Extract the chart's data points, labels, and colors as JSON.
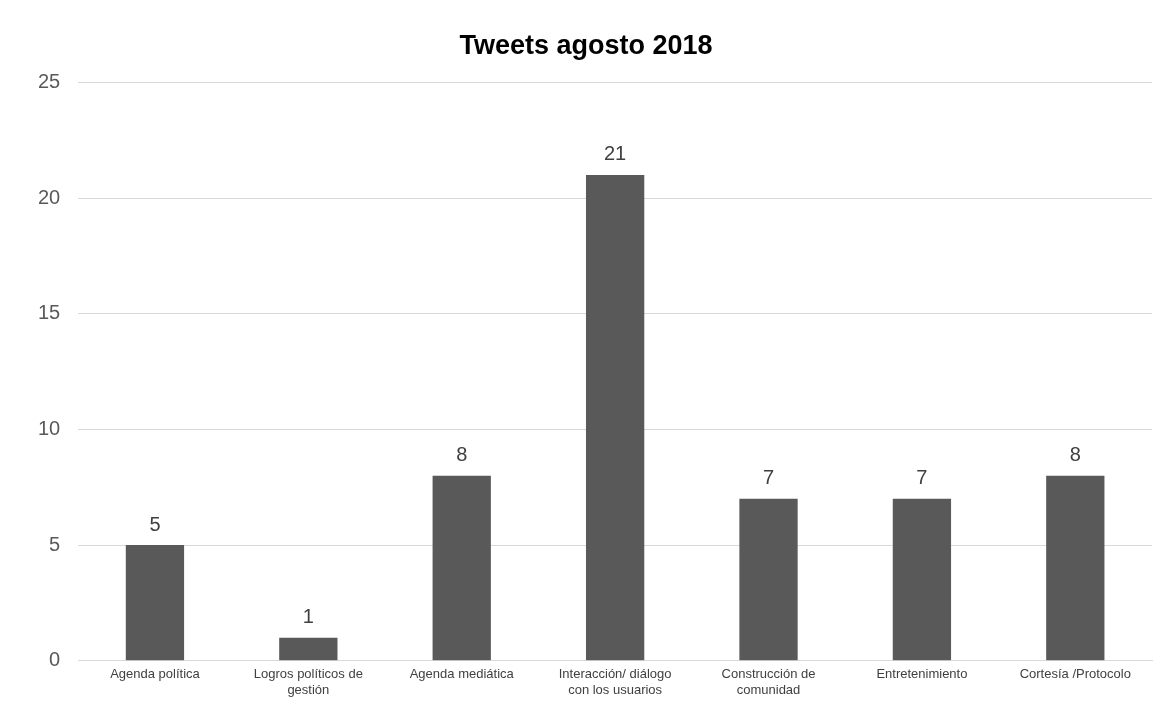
{
  "chart_data": {
    "type": "bar",
    "title": "Tweets agosto 2018",
    "categories": [
      "Agenda política",
      "Logros políticos de gestión",
      "Agenda mediática",
      "Interacción/ diálogo con los usuarios",
      "Construcción de comunidad",
      "Entretenimiento",
      "Cortesía /Protocolo"
    ],
    "values": [
      5,
      1,
      8,
      21,
      7,
      7,
      8
    ],
    "color": "#595959",
    "ylim": [
      0,
      25
    ],
    "yticks": [
      0,
      5,
      10,
      15,
      20,
      25
    ],
    "grid": "y",
    "legend": false,
    "data_labels": true
  }
}
